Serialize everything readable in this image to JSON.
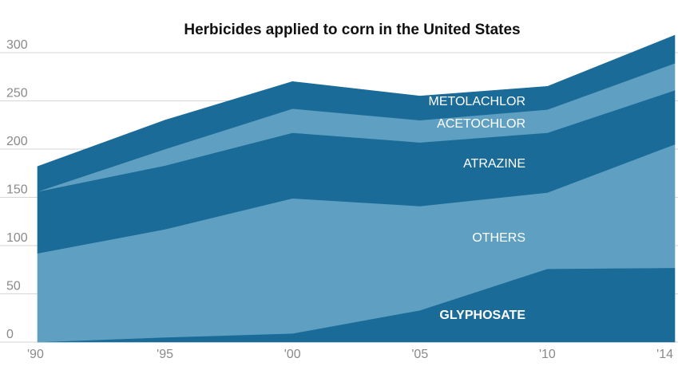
{
  "chart_data": {
    "type": "area",
    "stacked": true,
    "title": "Herbicides applied to corn in the United States",
    "xlabel": "",
    "ylabel": "",
    "x": [
      "'90",
      "'95",
      "'00",
      "'05",
      "'10",
      "'14"
    ],
    "ylim": [
      0,
      320
    ],
    "yticks": [
      "0",
      "50",
      "100",
      "150",
      "200",
      "250",
      "300"
    ],
    "grid": true,
    "series": [
      {
        "name": "GLYPHOSATE",
        "values": [
          0,
          5,
          9,
          33,
          76,
          77
        ],
        "color": "#1b6b99",
        "label_bold": true
      },
      {
        "name": "OTHERS",
        "values": [
          92,
          112,
          140,
          108,
          79,
          128
        ],
        "color": "#5fa0c2",
        "label_bold": false
      },
      {
        "name": "ATRAZINE",
        "values": [
          64,
          66,
          68,
          66,
          62,
          56
        ],
        "color": "#1b6b99",
        "label_bold": false
      },
      {
        "name": "ACETOCHLOR",
        "values": [
          0,
          17,
          25,
          23,
          24,
          28
        ],
        "color": "#5fa0c2",
        "label_bold": false
      },
      {
        "name": "METOLACHLOR",
        "values": [
          26,
          30,
          28,
          25,
          24,
          29
        ],
        "color": "#1b6b99",
        "label_bold": false
      }
    ]
  }
}
